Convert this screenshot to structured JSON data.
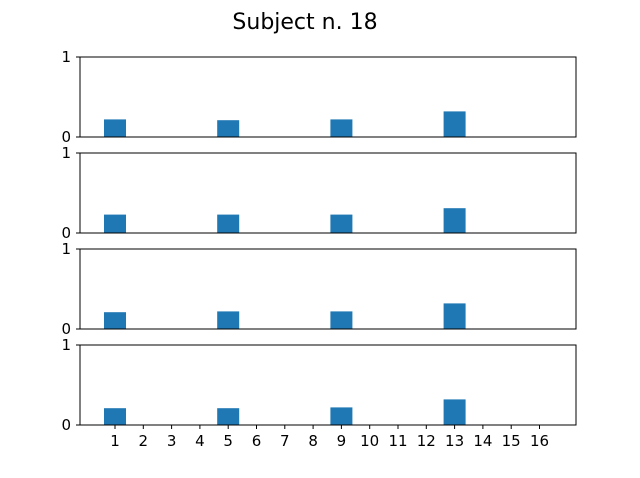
{
  "chart_data": {
    "type": "bar",
    "title": "Subject n. 18",
    "bar_color": "#1f77b4",
    "categories": [
      "1",
      "2",
      "3",
      "4",
      "5",
      "6",
      "7",
      "8",
      "9",
      "10",
      "11",
      "12",
      "13",
      "14",
      "15",
      "16"
    ],
    "ylim": [
      0,
      1
    ],
    "y_ticks": [
      "0",
      "1"
    ],
    "grid": false,
    "panels": [
      {
        "values": [
          0.22,
          0,
          0,
          0,
          0.21,
          0,
          0,
          0,
          0.22,
          0,
          0,
          0,
          0.32,
          0,
          0,
          0
        ]
      },
      {
        "values": [
          0.23,
          0,
          0,
          0,
          0.23,
          0,
          0,
          0,
          0.23,
          0,
          0,
          0,
          0.31,
          0,
          0,
          0
        ]
      },
      {
        "values": [
          0.21,
          0,
          0,
          0,
          0.22,
          0,
          0,
          0,
          0.22,
          0,
          0,
          0,
          0.32,
          0,
          0,
          0
        ]
      },
      {
        "values": [
          0.21,
          0,
          0,
          0,
          0.21,
          0,
          0,
          0,
          0.22,
          0,
          0,
          0,
          0.32,
          0,
          0,
          0
        ]
      }
    ]
  }
}
